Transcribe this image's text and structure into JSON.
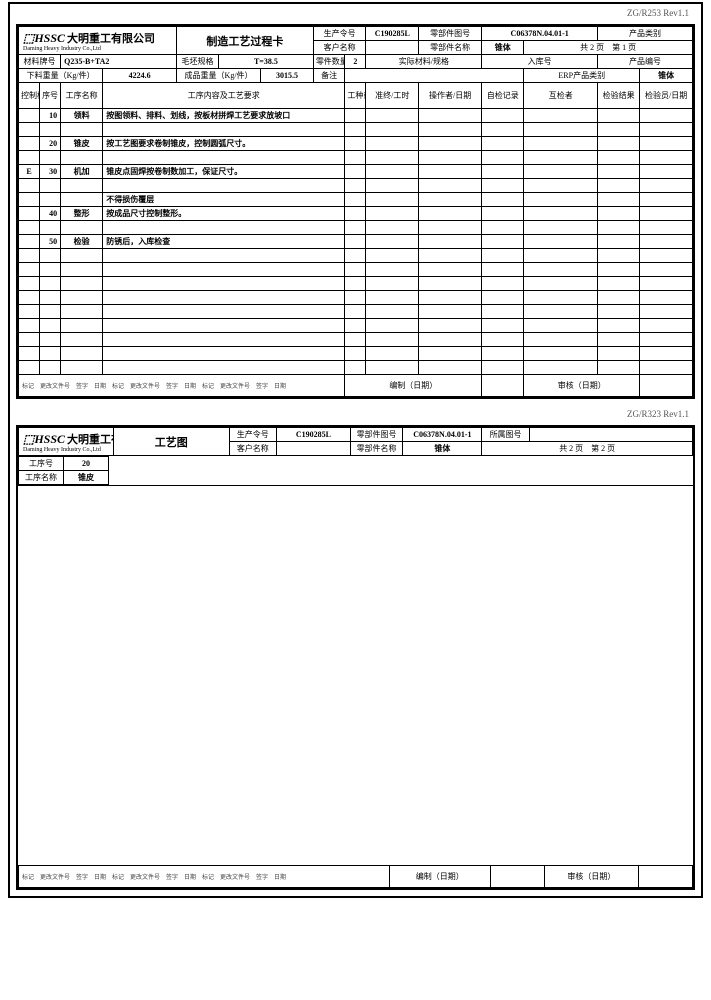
{
  "rev": "ZG/R253 Rev1.1",
  "rev2": "ZG/R323 Rev1.1",
  "logo": {
    "brand": "⬚HSSC",
    "cn": "大明重工有限公司",
    "en": "Daming Heavy Industry Co.,Ltd"
  },
  "page1": {
    "title": "制造工艺过程卡",
    "hdr": {
      "prod_order_lbl": "生产令号",
      "prod_order": "C190285L",
      "part_no_lbl": "零部件图号",
      "part_no": "C06378N.04.01-1",
      "prod_cat_lbl": "产品类别",
      "cust_lbl": "客户名称",
      "part_name_lbl": "零部件名称",
      "part_name": "锥体",
      "pages": "共 2 页　第 1 页",
      "mat_no_lbl": "材料牌号",
      "mat_no": "Q235-B+TA2",
      "blank_spec_lbl": "毛坯规格",
      "blank_spec": "T=38.5",
      "qty_lbl": "零件数量",
      "qty": "2",
      "raw_lbl": "实际材料/规格",
      "in_lbl": "入库号",
      "prod_code_lbl": "产品编号",
      "blank_wt_lbl": "下料重量（Kg/件）",
      "blank_wt": "4224.6",
      "fin_wt_lbl": "成品重量（Kg/件）",
      "fin_wt": "3015.5",
      "remark_lbl": "备注",
      "erp_lbl": "ERP产品类别",
      "erp": "锥体"
    },
    "cols": {
      "ctrl": "控制标记",
      "seq": "序号",
      "op_no": "工序名称",
      "content": "工序内容及工艺要求",
      "equip": "工种或设备",
      "time": "准终/工时",
      "operator": "操作者/日期",
      "selfchk": "自检记录",
      "inspector": "互检者",
      "result": "检验结果",
      "qc": "检验员/日期"
    },
    "rows": [
      {
        "ctrl": "",
        "seq": "10",
        "name": "领料",
        "content": "按图领料、排料、划线，按板材拼焊工艺要求放坡口"
      },
      {
        "ctrl": "",
        "seq": "20",
        "name": "锥皮",
        "content": "按工艺图要求卷制锥皮，控制圆弧尺寸。"
      },
      {
        "ctrl": "E",
        "seq": "30",
        "name": "机加",
        "content": "锥皮点固焊按卷制数加工，保证尺寸。"
      },
      {
        "ctrl": "",
        "seq": "",
        "name": "",
        "content": "不得损伤覆层"
      },
      {
        "ctrl": "",
        "seq": "40",
        "name": "整形",
        "content": "按成品尺寸控制整形。"
      },
      {
        "ctrl": "",
        "seq": "50",
        "name": "检验",
        "content": "防锈后，入库检查"
      }
    ],
    "foot": {
      "prepared_lbl": "编制（日期）",
      "approved_lbl": "审核（日期）",
      "rev_lbls": [
        "标记",
        "更改文件号",
        "签字",
        "日期",
        "标记",
        "更改文件号",
        "签字",
        "日期",
        "标记",
        "更改文件号",
        "签字",
        "日期"
      ]
    }
  },
  "page2": {
    "title": "工艺图",
    "hdr": {
      "prod_order_lbl": "生产令号",
      "prod_order": "C190285L",
      "part_no_lbl": "零部件图号",
      "part_no": "C06378N.04.01-1",
      "draw_lbl": "所属图号",
      "cust_lbl": "客户名称",
      "part_name_lbl": "零部件名称",
      "part_name": "锥体",
      "pages": "共 2 页　第 2 页",
      "op_no_lbl": "工序号",
      "op_no": "20",
      "op_name_lbl": "工序名称",
      "op_name": "锥皮"
    },
    "foot": {
      "prepared_lbl": "编制（日期）",
      "approved_lbl": "审核（日期）"
    }
  }
}
